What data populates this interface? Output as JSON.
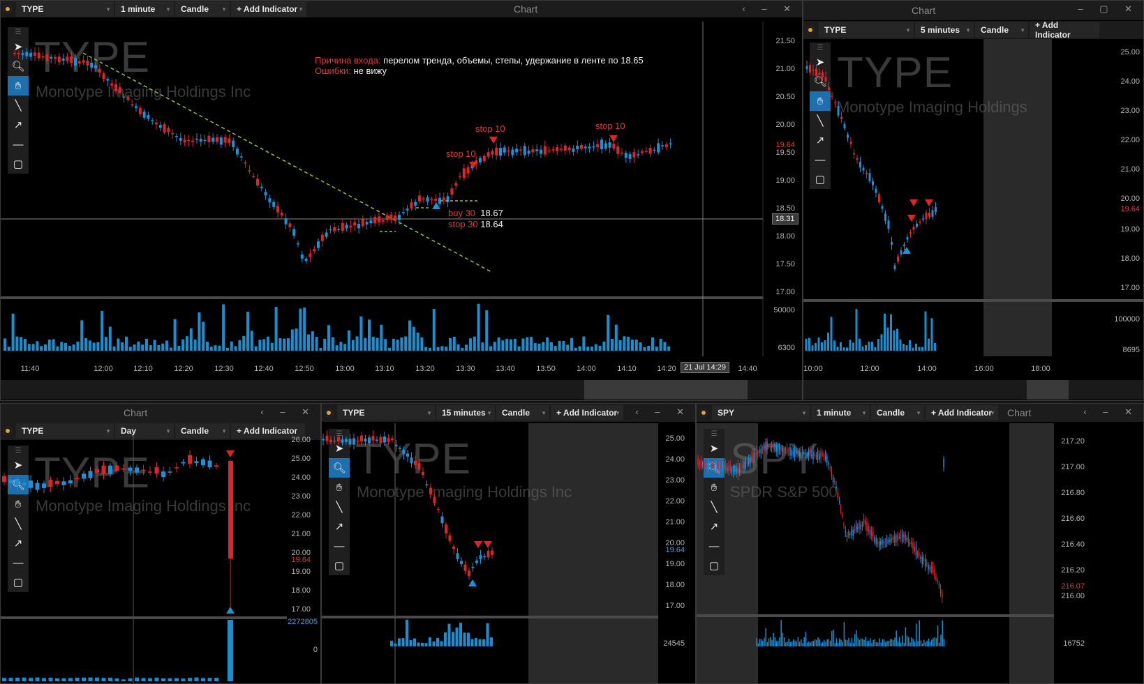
{
  "colors": {
    "up": "#1e90d6",
    "down": "#d9262b",
    "volume": "#1a8fd0",
    "trend": "#8dc63f"
  },
  "main": {
    "symbol": "TYPE",
    "interval": "1 minute",
    "style": "Candle",
    "add_indicator": "+ Add Indicator",
    "window_title": "Chart",
    "wm_symbol": "TYPE",
    "wm_name": "Monotype Imaging Holdings Inc",
    "entry_reason_label": "Причина входа:",
    "entry_reason_text": "перелом тренда, объемы, степы, удержание в ленте по 18.65",
    "errors_label": "Ошибки:",
    "errors_text": "не вижу",
    "stop1": "stop 10",
    "stop2": "stop 10",
    "stop3": "stop 10",
    "buy_label": "buy 30",
    "buy_price": "18.67",
    "stop30_label": "stop 30",
    "stop30_price": "18.64",
    "price_ticks": [
      "21.50",
      "21.00",
      "20.50",
      "20.00",
      "19.50",
      "19.00",
      "18.50",
      "18.00",
      "17.50",
      "17.00"
    ],
    "last_price": "19.64",
    "cursor_price": "18.31",
    "vol_ticks": [
      "50000",
      "6300"
    ],
    "time_ticks": [
      "11:40",
      "12:00",
      "12:10",
      "12:20",
      "12:30",
      "12:40",
      "12:50",
      "13:00",
      "13:10",
      "13:20",
      "13:30",
      "13:40",
      "13:50",
      "14:00",
      "14:10",
      "14:20",
      "14:40"
    ],
    "cursor_time": "21 Jul 14:29"
  },
  "topright": {
    "window_title": "Chart",
    "symbol": "TYPE",
    "interval": "5 minutes",
    "style": "Candle",
    "add_indicator": "+ Add Indicator",
    "wm_symbol": "TYPE",
    "wm_name": "Monotype Imaging Holdings",
    "price_ticks": [
      "25.00",
      "24.00",
      "23.00",
      "22.00",
      "21.00",
      "20.00",
      "19.00",
      "18.00",
      "17.00"
    ],
    "last_price": "19.64",
    "vol_ticks": [
      "100000",
      "8695"
    ],
    "time_ticks": [
      "10:00",
      "12:00",
      "14:00",
      "16:00",
      "18:00"
    ]
  },
  "bottomleft": {
    "window_title": "Chart",
    "symbol": "TYPE",
    "interval": "Day",
    "style": "Candle",
    "add_indicator": "+ Add Indicator",
    "wm_symbol": "TYPE",
    "wm_name": "Monotype Imaging Holdings Inc",
    "price_ticks": [
      "26.00",
      "25.00",
      "24.00",
      "23.00",
      "22.00",
      "21.00",
      "20.00",
      "19.00",
      "18.00",
      "17.00"
    ],
    "last_price": "19.64",
    "vol_ticks": [
      "2272805",
      "0"
    ]
  },
  "bottommid": {
    "symbol": "TYPE",
    "interval": "15 minutes",
    "style": "Candle",
    "add_indicator": "+ Add Indicator",
    "wm_symbol": "TYPE",
    "wm_name": "Monotype Imaging Holdings Inc",
    "price_ticks": [
      "25.00",
      "24.00",
      "23.00",
      "22.00",
      "21.00",
      "20.00",
      "19.00",
      "18.00",
      "17.00"
    ],
    "last_price": "19.64",
    "vol_ticks": [
      "24545"
    ]
  },
  "bottomright": {
    "window_title": "Chart",
    "symbol": "SPY",
    "interval": "1 minute",
    "style": "Candle",
    "add_indicator": "+ Add Indicator",
    "wm_symbol": "SPY",
    "wm_name": "SPDR S&P 500",
    "price_ticks": [
      "217.20",
      "217.00",
      "216.80",
      "216.60",
      "216.40",
      "216.20",
      "216.00"
    ],
    "last_price": "216.07",
    "vol_ticks": [
      "16752"
    ]
  }
}
